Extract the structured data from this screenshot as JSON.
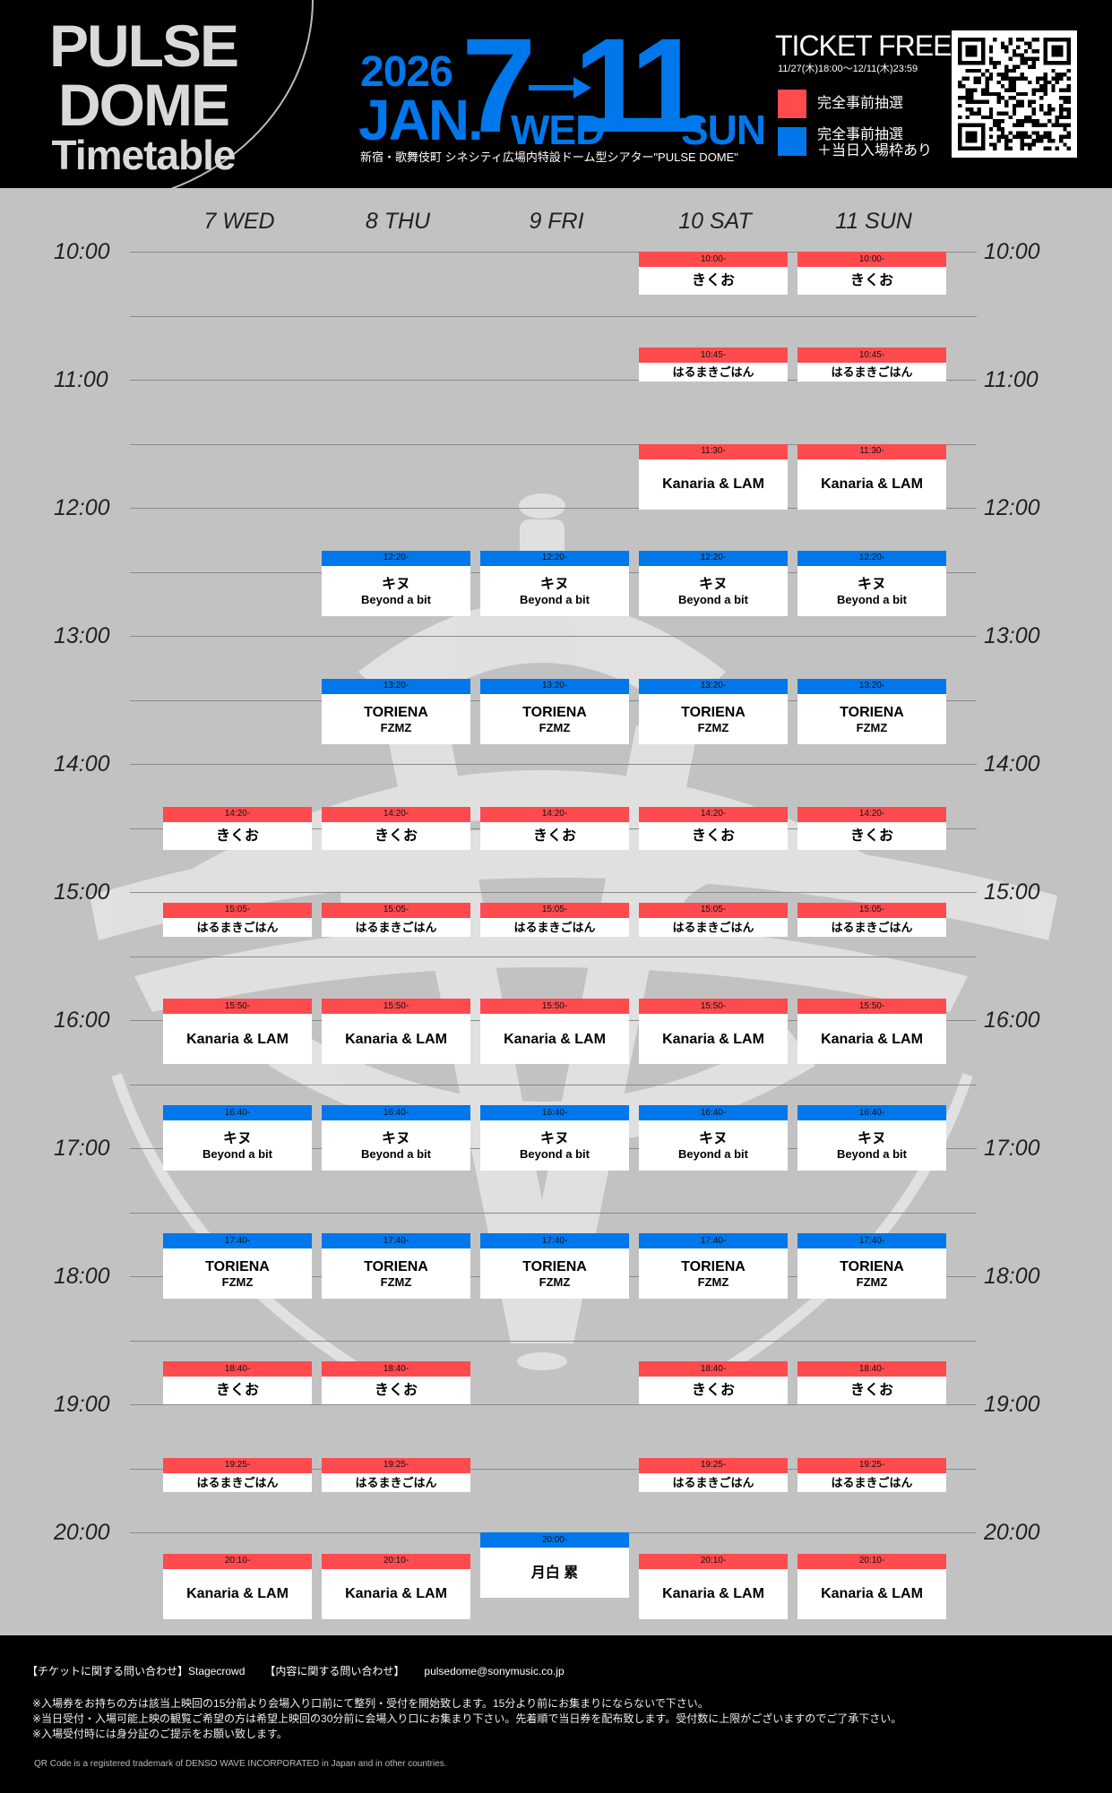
{
  "header": {
    "logo_line1": "PULSE",
    "logo_line2": "DOME",
    "logo_line3": "Timetable",
    "year": "2026",
    "month": "JAN.",
    "start_day": "7",
    "start_dow": "WED",
    "end_day": "11",
    "end_dow": "SUN",
    "venue": "新宿・歌舞伎町 シネシティ広場内特設ドーム型シアター\"PULSE DOME\"",
    "ticket_title": "TICKET FREE",
    "ticket_period": "11/27(木)18:00～12/11(木)23:59",
    "legend_red": "完全事前抽選",
    "legend_blue_line1": "完全事前抽選",
    "legend_blue_line2": "＋当日入場枠あり",
    "accent_blue": "#0077ea",
    "accent_red": "#ff4a4e"
  },
  "days": [
    "7 WED",
    "8 THU",
    "9 FRI",
    "10 SAT",
    "11 SUN"
  ],
  "hours": [
    "10:00",
    "11:00",
    "12:00",
    "13:00",
    "14:00",
    "15:00",
    "16:00",
    "17:00",
    "18:00",
    "19:00",
    "20:00"
  ],
  "slots": [
    {
      "day": 3,
      "start": "10:00",
      "color": "red",
      "time": "10:00-",
      "title": "きくお"
    },
    {
      "day": 4,
      "start": "10:00",
      "color": "red",
      "time": "10:00-",
      "title": "きくお"
    },
    {
      "day": 3,
      "start": "10:45",
      "color": "red",
      "time": "10:45-",
      "title": "はるまきごはん"
    },
    {
      "day": 4,
      "start": "10:45",
      "color": "red",
      "time": "10:45-",
      "title": "はるまきごはん"
    },
    {
      "day": 3,
      "start": "11:30",
      "color": "red",
      "time": "11:30-",
      "title": "Kanaria & LAM"
    },
    {
      "day": 4,
      "start": "11:30",
      "color": "red",
      "time": "11:30-",
      "title": "Kanaria & LAM"
    },
    {
      "day": 1,
      "start": "12:20",
      "color": "blue",
      "time": "12:20-",
      "title": "キヌ",
      "sub": "Beyond a bit"
    },
    {
      "day": 2,
      "start": "12:20",
      "color": "blue",
      "time": "12:20-",
      "title": "キヌ",
      "sub": "Beyond a bit"
    },
    {
      "day": 3,
      "start": "12:20",
      "color": "blue",
      "time": "12:20-",
      "title": "キヌ",
      "sub": "Beyond a bit"
    },
    {
      "day": 4,
      "start": "12:20",
      "color": "blue",
      "time": "12:20-",
      "title": "キヌ",
      "sub": "Beyond a bit"
    },
    {
      "day": 1,
      "start": "13:20",
      "color": "blue",
      "time": "13:20-",
      "title": "TORIENA",
      "sub": "FZMZ"
    },
    {
      "day": 2,
      "start": "13:20",
      "color": "blue",
      "time": "13:20-",
      "title": "TORIENA",
      "sub": "FZMZ"
    },
    {
      "day": 3,
      "start": "13:20",
      "color": "blue",
      "time": "13:20-",
      "title": "TORIENA",
      "sub": "FZMZ"
    },
    {
      "day": 4,
      "start": "13:20",
      "color": "blue",
      "time": "13:20-",
      "title": "TORIENA",
      "sub": "FZMZ"
    },
    {
      "day": 0,
      "start": "14:20",
      "color": "red",
      "time": "14:20-",
      "title": "きくお"
    },
    {
      "day": 1,
      "start": "14:20",
      "color": "red",
      "time": "14:20-",
      "title": "きくお"
    },
    {
      "day": 2,
      "start": "14:20",
      "color": "red",
      "time": "14:20-",
      "title": "きくお"
    },
    {
      "day": 3,
      "start": "14:20",
      "color": "red",
      "time": "14:20-",
      "title": "きくお"
    },
    {
      "day": 4,
      "start": "14:20",
      "color": "red",
      "time": "14:20-",
      "title": "きくお"
    },
    {
      "day": 0,
      "start": "15:05",
      "color": "red",
      "time": "15:05-",
      "title": "はるまきごはん"
    },
    {
      "day": 1,
      "start": "15:05",
      "color": "red",
      "time": "15:05-",
      "title": "はるまきごはん"
    },
    {
      "day": 2,
      "start": "15:05",
      "color": "red",
      "time": "15:05-",
      "title": "はるまきごはん"
    },
    {
      "day": 3,
      "start": "15:05",
      "color": "red",
      "time": "15:05-",
      "title": "はるまきごはん"
    },
    {
      "day": 4,
      "start": "15:05",
      "color": "red",
      "time": "15:05-",
      "title": "はるまきごはん"
    },
    {
      "day": 0,
      "start": "15:50",
      "color": "red",
      "time": "15:50-",
      "title": "Kanaria & LAM"
    },
    {
      "day": 1,
      "start": "15:50",
      "color": "red",
      "time": "15:50-",
      "title": "Kanaria & LAM"
    },
    {
      "day": 2,
      "start": "15:50",
      "color": "red",
      "time": "15:50-",
      "title": "Kanaria & LAM"
    },
    {
      "day": 3,
      "start": "15:50",
      "color": "red",
      "time": "15:50-",
      "title": "Kanaria & LAM"
    },
    {
      "day": 4,
      "start": "15:50",
      "color": "red",
      "time": "15:50-",
      "title": "Kanaria & LAM"
    },
    {
      "day": 0,
      "start": "16:40",
      "color": "blue",
      "time": "16:40-",
      "title": "キヌ",
      "sub": "Beyond a bit"
    },
    {
      "day": 1,
      "start": "16:40",
      "color": "blue",
      "time": "16:40-",
      "title": "キヌ",
      "sub": "Beyond a bit"
    },
    {
      "day": 2,
      "start": "16:40",
      "color": "blue",
      "time": "16:40-",
      "title": "キヌ",
      "sub": "Beyond a bit"
    },
    {
      "day": 3,
      "start": "16:40",
      "color": "blue",
      "time": "16:40-",
      "title": "キヌ",
      "sub": "Beyond a bit"
    },
    {
      "day": 4,
      "start": "16:40",
      "color": "blue",
      "time": "16:40-",
      "title": "キヌ",
      "sub": "Beyond a bit"
    },
    {
      "day": 0,
      "start": "17:40",
      "color": "blue",
      "time": "17:40-",
      "title": "TORIENA",
      "sub": "FZMZ"
    },
    {
      "day": 1,
      "start": "17:40",
      "color": "blue",
      "time": "17:40-",
      "title": "TORIENA",
      "sub": "FZMZ"
    },
    {
      "day": 2,
      "start": "17:40",
      "color": "blue",
      "time": "17:40-",
      "title": "TORIENA",
      "sub": "FZMZ"
    },
    {
      "day": 3,
      "start": "17:40",
      "color": "blue",
      "time": "17:40-",
      "title": "TORIENA",
      "sub": "FZMZ"
    },
    {
      "day": 4,
      "start": "17:40",
      "color": "blue",
      "time": "17:40-",
      "title": "TORIENA",
      "sub": "FZMZ"
    },
    {
      "day": 0,
      "start": "18:40",
      "color": "red",
      "time": "18:40-",
      "title": "きくお"
    },
    {
      "day": 1,
      "start": "18:40",
      "color": "red",
      "time": "18:40-",
      "title": "きくお"
    },
    {
      "day": 3,
      "start": "18:40",
      "color": "red",
      "time": "18:40-",
      "title": "きくお"
    },
    {
      "day": 4,
      "start": "18:40",
      "color": "red",
      "time": "18:40-",
      "title": "きくお"
    },
    {
      "day": 0,
      "start": "19:25",
      "color": "red",
      "time": "19:25-",
      "title": "はるまきごはん"
    },
    {
      "day": 1,
      "start": "19:25",
      "color": "red",
      "time": "19:25-",
      "title": "はるまきごはん"
    },
    {
      "day": 3,
      "start": "19:25",
      "color": "red",
      "time": "19:25-",
      "title": "はるまきごはん"
    },
    {
      "day": 4,
      "start": "19:25",
      "color": "red",
      "time": "19:25-",
      "title": "はるまきごはん"
    },
    {
      "day": 0,
      "start": "20:10",
      "color": "red",
      "time": "20:10-",
      "title": "Kanaria & LAM"
    },
    {
      "day": 1,
      "start": "20:10",
      "color": "red",
      "time": "20:10-",
      "title": "Kanaria & LAM"
    },
    {
      "day": 2,
      "start": "20:00",
      "color": "blue",
      "time": "20:00-",
      "title": "月白 累"
    },
    {
      "day": 3,
      "start": "20:10",
      "color": "red",
      "time": "20:10-",
      "title": "Kanaria & LAM"
    },
    {
      "day": 4,
      "start": "20:10",
      "color": "red",
      "time": "20:10-",
      "title": "Kanaria & LAM"
    }
  ],
  "footer": {
    "contact_ticket": "【チケットに関する問い合わせ】Stagecrowd",
    "contact_content": "【内容に関する問い合わせ】",
    "contact_email": "pulsedome@sonymusic.co.jp",
    "note1": "※入場券をお持ちの方は該当上映回の15分前より会場入り口前にて整列・受付を開始致します。15分より前にお集まりにならないで下さい。",
    "note2": "※当日受付・入場可能上映の観覧ご希望の方は希望上映回の30分前に会場入り口にお集まり下さい。先着順で当日券を配布致します。受付数に上限がございますのでご了承下さい。",
    "note3": "※入場受付時には身分証のご提示をお願い致します。",
    "qr_trademark": "QR Code is a registered trademark of DENSO WAVE INCORPORATED in Japan and in other countries."
  }
}
